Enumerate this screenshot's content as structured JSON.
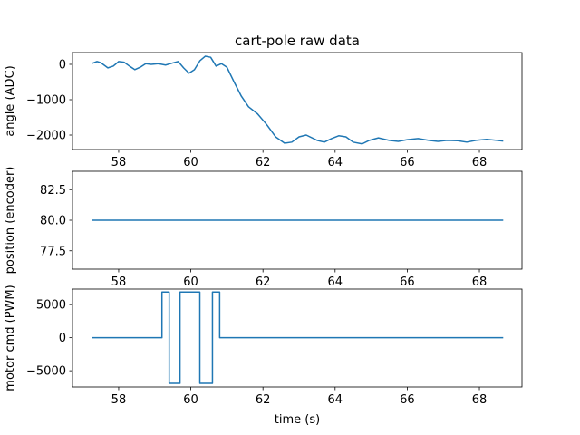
{
  "chart_data": [
    {
      "type": "line",
      "title": "cart-pole raw data",
      "ylabel": "angle (ADC)",
      "xlim": [
        56.72,
        69.18
      ],
      "xticks": [
        58,
        60,
        62,
        64,
        66,
        68
      ],
      "ylim": [
        -2410,
        333
      ],
      "yticks": [
        {
          "value": -2000,
          "label": "−2000"
        },
        {
          "value": -1000,
          "label": "−1000"
        },
        0
      ],
      "x": [
        57.27,
        57.4,
        57.5,
        57.7,
        57.85,
        58.0,
        58.15,
        58.3,
        58.45,
        58.6,
        58.75,
        58.9,
        59.1,
        59.3,
        59.5,
        59.65,
        59.8,
        59.95,
        60.1,
        60.25,
        60.4,
        60.55,
        60.7,
        60.85,
        61.0,
        61.2,
        61.4,
        61.6,
        61.85,
        62.1,
        62.35,
        62.6,
        62.8,
        63.0,
        63.2,
        63.5,
        63.7,
        63.9,
        64.1,
        64.3,
        64.5,
        64.75,
        64.95,
        65.2,
        65.5,
        65.75,
        66.0,
        66.3,
        66.6,
        66.85,
        67.1,
        67.4,
        67.65,
        67.9,
        68.2,
        68.66
      ],
      "series": [
        {
          "name": "angle",
          "color": "#1f77b4",
          "values": [
            30,
            80,
            50,
            -100,
            -50,
            80,
            60,
            -50,
            -150,
            -80,
            20,
            0,
            20,
            -20,
            40,
            80,
            -100,
            -250,
            -150,
            100,
            230,
            200,
            -50,
            20,
            -80,
            -500,
            -900,
            -1200,
            -1400,
            -1700,
            -2050,
            -2230,
            -2200,
            -2050,
            -2000,
            -2150,
            -2200,
            -2100,
            -2020,
            -2050,
            -2200,
            -2250,
            -2150,
            -2080,
            -2150,
            -2180,
            -2130,
            -2100,
            -2150,
            -2180,
            -2150,
            -2160,
            -2200,
            -2150,
            -2120,
            -2170
          ]
        }
      ]
    },
    {
      "type": "line",
      "ylabel": "position (encoder)",
      "xlim": [
        56.72,
        69.18
      ],
      "xticks": [
        58,
        60,
        62,
        64,
        66,
        68
      ],
      "ylim": [
        76,
        84
      ],
      "yticks": [
        77.5,
        {
          "value": 80,
          "label": "80.0"
        },
        82.5
      ],
      "x": [
        57.27,
        68.66
      ],
      "series": [
        {
          "name": "position",
          "color": "#1f77b4",
          "values": [
            80,
            80
          ]
        }
      ]
    },
    {
      "type": "line",
      "ylabel": "motor cmd (PWM)",
      "xlabel": "time (s)",
      "xlim": [
        56.72,
        69.18
      ],
      "xticks": [
        58,
        60,
        62,
        64,
        66,
        68
      ],
      "ylim": [
        -7450,
        7350
      ],
      "yticks": [
        {
          "value": -5000,
          "label": "−5000"
        },
        0,
        5000
      ],
      "x": [
        57.27,
        59.2,
        59.2,
        59.4,
        59.4,
        59.7,
        59.7,
        60.25,
        60.25,
        60.6,
        60.6,
        60.8,
        60.8,
        68.66
      ],
      "series": [
        {
          "name": "motor",
          "color": "#1f77b4",
          "values": [
            0,
            0,
            6900,
            6900,
            -6900,
            -6900,
            6900,
            6900,
            -6900,
            -6900,
            6900,
            6900,
            0,
            0
          ]
        }
      ]
    }
  ]
}
